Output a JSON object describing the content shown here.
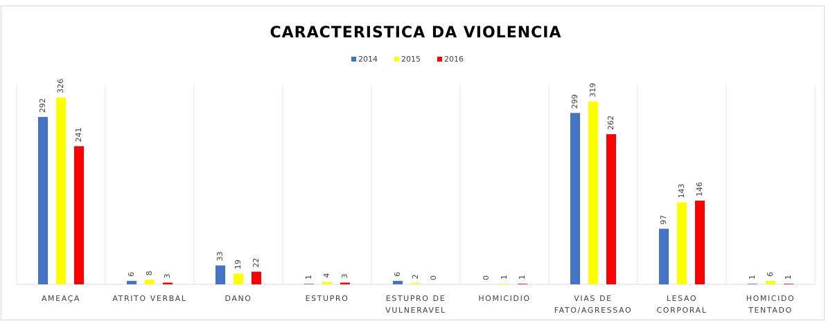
{
  "chart_data": {
    "type": "bar",
    "title": "CARACTERISTICA DA VIOLENCIA",
    "categories": [
      "AMEAÇA",
      "ATRITO VERBAL",
      "DANO",
      "ESTUPRO",
      "ESTUPRO DE VULNERAVEL",
      "HOMICIDIO",
      "VIAS DE FATO/AGRESSAO",
      "LESAO CORPORAL",
      "HOMICIDO TENTADO"
    ],
    "series": [
      {
        "name": "2014",
        "color": "#4472c4",
        "values": [
          292,
          6,
          33,
          1,
          6,
          0,
          299,
          97,
          1
        ]
      },
      {
        "name": "2015",
        "color": "#ffff00",
        "values": [
          326,
          8,
          19,
          4,
          2,
          1,
          319,
          143,
          6
        ]
      },
      {
        "name": "2016",
        "color": "#ff0000",
        "values": [
          241,
          3,
          22,
          3,
          0,
          1,
          262,
          146,
          1
        ]
      }
    ],
    "ylim": [
      0,
      350
    ],
    "legend": "top"
  }
}
